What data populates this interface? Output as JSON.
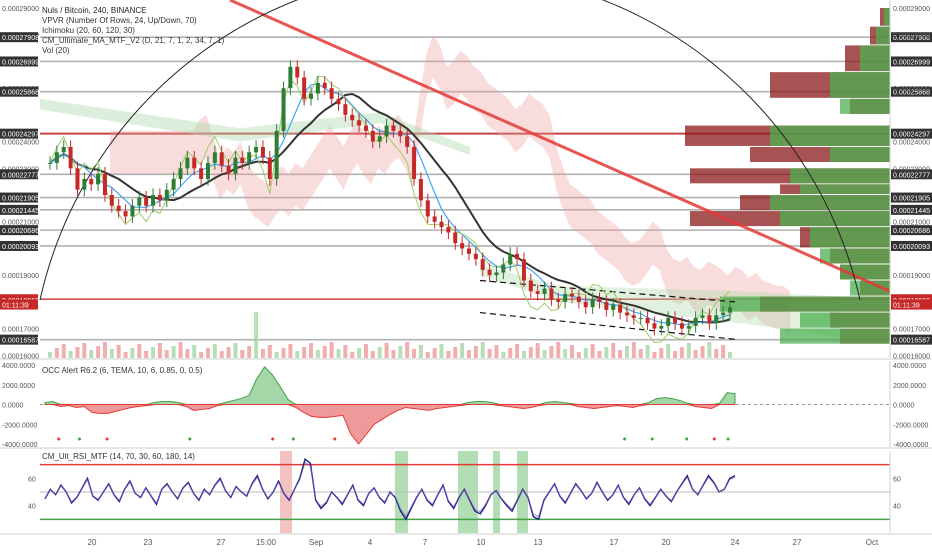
{
  "header": {
    "symbol_line": "Nuls / Bitcoin, 240, BINANCE",
    "indicators": [
      "VPVR (Number Of Rows, 24, Up/Down, 70)",
      "Ichimoku (20, 60, 120, 30)",
      "CM_Ultimate_MA_MTF_V2 (D, 21, 7, 1, 2, 34, 7, 1)",
      "Vol (20)"
    ],
    "osc_label": "OCC Alert R6.2 (6, TEMA, 10, 6, 0.85, 0, 0.5)",
    "rsi_label": "CM_Ult_RSI_MTF (14, 70, 30, 60, 180, 14)"
  },
  "colors": {
    "up": "#26a69a",
    "down": "#ef5350",
    "candle_up": "#2e7d32",
    "candle_down": "#c62828",
    "cloud_green": "#a5d6a7",
    "cloud_red": "#ef9a9a",
    "trendline": "#e53935",
    "ma_black": "#333333",
    "ma_blue": "#42a5f5",
    "rsi_line": "#1a237e",
    "rsi_upper": "#e53935",
    "rsi_lower": "#43a047"
  },
  "chart_data": [
    {
      "type": "candlestick",
      "title": "Nuls / Bitcoin, 240, BINANCE",
      "ylim": [
        0.000159,
        0.000293
      ],
      "y_ticks": [
        "0.00029000",
        "0.00028000",
        "0.00026000",
        "0.00024000",
        "0.00023000",
        "0.00021000",
        "0.00019000",
        "0.00017000",
        "0.00016000"
      ],
      "x_ticks": [
        "20",
        "23",
        "27",
        "15:00",
        "Sep",
        "4",
        "7",
        "10",
        "13",
        "17",
        "20",
        "24",
        "27",
        "Oct"
      ],
      "price_labels": [
        {
          "text": "0.00027908",
          "value": 0.00027908,
          "style": "dark"
        },
        {
          "text": "0.00026999",
          "value": 0.00026999,
          "style": "dark"
        },
        {
          "text": "0.00025868",
          "value": 0.00025868,
          "style": "dark"
        },
        {
          "text": "0.00024297",
          "value": 0.00024297,
          "style": "dark"
        },
        {
          "text": "0.00022777",
          "value": 0.00022777,
          "style": "dark"
        },
        {
          "text": "0.00021905",
          "value": 0.00021905,
          "style": "dark"
        },
        {
          "text": "0.00021445",
          "value": 0.00021445,
          "style": "dark"
        },
        {
          "text": "0.00020686",
          "value": 0.00020686,
          "style": "dark"
        },
        {
          "text": "0.00020093",
          "value": 0.00020093,
          "style": "dark"
        },
        {
          "text": "0.00018100",
          "value": 0.000181,
          "style": "red"
        },
        {
          "text": "0.00018066",
          "value": 0.00018066,
          "style": "red"
        },
        {
          "text": "01:11:39",
          "value": 0.000179,
          "style": "red"
        },
        {
          "text": "0.00016587",
          "value": 0.00016587,
          "style": "dark"
        }
      ],
      "close_path": [
        0.000232,
        0.000236,
        0.000238,
        0.00023,
        0.000222,
        0.000226,
        0.000224,
        0.000228,
        0.00022,
        0.000216,
        0.000214,
        0.000212,
        0.000216,
        0.000219,
        0.000216,
        0.00022,
        0.000218,
        0.000222,
        0.000226,
        0.00023,
        0.000234,
        0.00023,
        0.000226,
        0.000232,
        0.000236,
        0.000231,
        0.000228,
        0.000234,
        0.000232,
        0.000236,
        0.000238,
        0.000234,
        0.000226,
        0.000244,
        0.00026,
        0.000268,
        0.000264,
        0.000256,
        0.000258,
        0.000262,
        0.00026,
        0.000256,
        0.000254,
        0.00025,
        0.000248,
        0.000246,
        0.000244,
        0.00024,
        0.000242,
        0.000246,
        0.000244,
        0.000242,
        0.000238,
        0.000226,
        0.000218,
        0.000212,
        0.00021,
        0.000208,
        0.000206,
        0.000202,
        0.0002,
        0.000198,
        0.000196,
        0.000192,
        0.00019,
        0.000191,
        0.000194,
        0.000198,
        0.000196,
        0.000188,
        0.000184,
        0.000183,
        0.000185,
        0.000181,
        0.00018,
        0.000183,
        0.000182,
        0.00018,
        0.000178,
        0.000181,
        0.00018,
        0.000177,
        0.000179,
        0.000176,
        0.000175,
        0.000174,
        0.000174,
        0.000172,
        0.00017,
        0.000171,
        0.000174,
        0.000172,
        0.00017,
        0.000171,
        0.000174,
        0.000175,
        0.000172,
        0.000175,
        0.000176,
        0.000178
      ],
      "volume_profile_rows": 24
    },
    {
      "type": "area",
      "title": "OCC Alert R6.2 (6, TEMA, 10, 6, 0.85, 0, 0.5)",
      "ylim": [
        -4000,
        4000
      ],
      "y_ticks": [
        "4000.0000",
        "2000.0000",
        "0.0000",
        "-2000.0000",
        "-4000.0000"
      ],
      "values": [
        200,
        300,
        -200,
        -100,
        -300,
        -200,
        -800,
        -900,
        -900,
        -700,
        -500,
        -300,
        -200,
        -100,
        200,
        300,
        300,
        200,
        -200,
        -600,
        -500,
        -400,
        -100,
        200,
        400,
        600,
        900,
        2600,
        3800,
        3000,
        1800,
        500,
        -300,
        -800,
        -1200,
        -1300,
        -1300,
        -1200,
        -1100,
        -3000,
        -4000,
        -3000,
        -2000,
        -1500,
        -1000,
        -600,
        -300,
        -400,
        -500,
        -600,
        -400,
        -300,
        -200,
        -100,
        200,
        300,
        300,
        200,
        -100,
        -200,
        -300,
        -400,
        -300,
        -100,
        200,
        300,
        200,
        100,
        -200,
        -300,
        -400,
        -300,
        -200,
        -100,
        -200,
        -300,
        -100,
        200,
        600,
        700,
        600,
        400,
        100,
        -200,
        -300,
        -400,
        100,
        1200,
        1100
      ],
      "signal_dots": [
        {
          "x": 0.02,
          "color": "red"
        },
        {
          "x": 0.05,
          "color": "green"
        },
        {
          "x": 0.09,
          "color": "red"
        },
        {
          "x": 0.21,
          "color": "green"
        },
        {
          "x": 0.33,
          "color": "red"
        },
        {
          "x": 0.36,
          "color": "green"
        },
        {
          "x": 0.42,
          "color": "red"
        },
        {
          "x": 0.84,
          "color": "green"
        },
        {
          "x": 0.88,
          "color": "green"
        },
        {
          "x": 0.93,
          "color": "green"
        },
        {
          "x": 0.97,
          "color": "red"
        },
        {
          "x": 0.99,
          "color": "green"
        }
      ]
    },
    {
      "type": "line",
      "title": "CM_Ult_RSI_MTF (14, 70, 30, 60, 180, 14)",
      "ylim": [
        20,
        80
      ],
      "y_ticks": [
        "60",
        "40"
      ],
      "upper": 70,
      "lower": 30,
      "values": [
        45,
        52,
        48,
        55,
        50,
        42,
        46,
        53,
        60,
        47,
        44,
        50,
        56,
        48,
        43,
        52,
        58,
        49,
        46,
        53,
        47,
        41,
        52,
        56,
        50,
        45,
        53,
        57,
        49,
        44,
        52,
        48,
        55,
        60,
        51,
        46,
        54,
        50,
        47,
        56,
        62,
        52,
        45,
        50,
        58,
        49,
        44,
        52,
        60,
        74,
        71,
        44,
        38,
        42,
        50,
        46,
        41,
        48,
        55,
        44,
        40,
        49,
        53,
        46,
        42,
        50,
        46,
        36,
        30,
        38,
        46,
        52,
        44,
        40,
        48,
        55,
        43,
        38,
        46,
        52,
        44,
        36,
        34,
        40,
        48,
        51,
        45,
        40,
        36,
        44,
        52,
        46,
        32,
        30,
        44,
        50,
        56,
        47,
        42,
        49,
        56,
        51,
        45,
        49,
        57,
        50,
        44,
        48,
        55,
        46,
        41,
        48,
        53,
        45,
        40,
        46,
        52,
        47,
        43,
        50,
        56,
        62,
        52,
        48,
        55,
        62,
        57,
        50,
        52,
        60,
        62
      ]
    }
  ]
}
